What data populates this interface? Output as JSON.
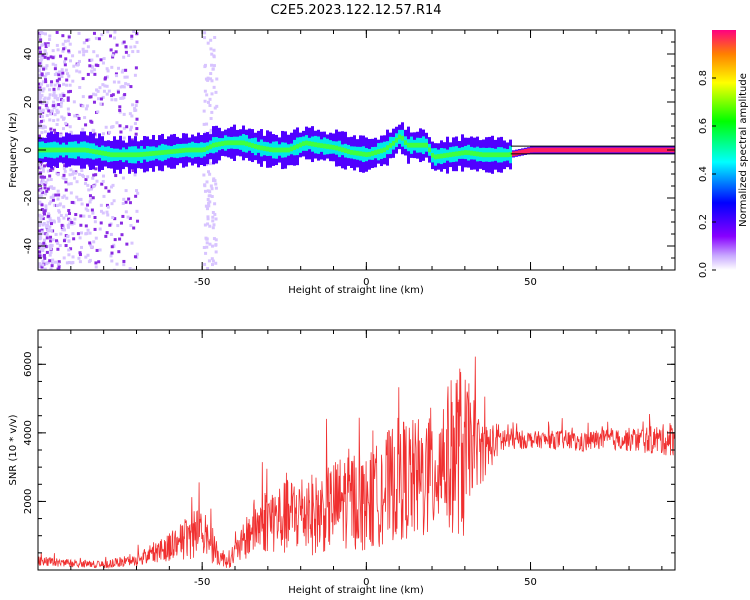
{
  "figure": {
    "title": "C2E5.2023.122.12.57.R14"
  },
  "chart_data": [
    {
      "type": "heatmap",
      "xlabel": "Height of straight line (km)",
      "ylabel": "Frequency (Hz)",
      "xlim": [
        -100,
        94
      ],
      "ylim": [
        -50,
        50
      ],
      "x_ticks": [
        "-50",
        "0",
        "50"
      ],
      "y_ticks": [
        "-40",
        "-20",
        "0",
        "20",
        "40"
      ],
      "ridge": {
        "x": [
          -98,
          -92,
          -86,
          -78,
          -70,
          -62,
          -55,
          -50,
          -47,
          -43,
          -38,
          -33,
          -29,
          -24,
          -19,
          -15,
          -10,
          -5,
          0,
          5,
          8,
          10,
          12,
          15,
          18,
          20,
          25,
          30,
          35,
          40,
          43,
          50,
          60,
          70,
          80,
          90,
          94
        ],
        "y": [
          0,
          0,
          0,
          -2,
          -2,
          -1,
          0,
          0,
          2,
          3,
          3,
          1,
          0,
          0,
          3,
          2,
          1,
          -1,
          -2,
          0,
          3,
          6,
          2,
          2,
          2,
          -3,
          -2,
          -1,
          -2,
          -2,
          -2,
          0,
          0,
          0,
          0,
          0,
          0
        ]
      },
      "colorbar": {
        "label": "Normalized spectral amplitude",
        "ticks": [
          "0.0",
          "0.2",
          "0.4",
          "0.6",
          "0.8"
        ],
        "range": [
          0,
          1
        ]
      }
    },
    {
      "type": "line",
      "xlabel": "Height of straight line (km)",
      "ylabel": "SNR (10 * v/v)",
      "xlim": [
        -100,
        94
      ],
      "ylim": [
        0,
        7000
      ],
      "x_ticks": [
        "-50",
        "0",
        "50"
      ],
      "y_ticks": [
        "2000",
        "4000",
        "6000"
      ],
      "series": [
        {
          "color": "#f03030",
          "x": [
            -100,
            -90,
            -80,
            -70,
            -65,
            -60,
            -55,
            -52,
            -50,
            -47,
            -45,
            -42,
            -38,
            -35,
            -30,
            -25,
            -20,
            -15,
            -10,
            -5,
            0,
            5,
            10,
            15,
            20,
            23,
            25,
            28,
            30,
            32,
            35,
            40,
            45,
            50,
            55,
            60,
            65,
            70,
            75,
            80,
            85,
            90,
            94
          ],
          "mean": [
            250,
            200,
            150,
            300,
            500,
            700,
            900,
            1100,
            1300,
            700,
            400,
            300,
            700,
            1200,
            1500,
            1500,
            1700,
            1600,
            1900,
            2100,
            1900,
            2300,
            2700,
            2600,
            2800,
            3400,
            3200,
            3600,
            3200,
            3800,
            3400,
            3800,
            3800,
            3800,
            3800,
            3800,
            3700,
            3800,
            3800,
            3800,
            3800,
            3800,
            3800
          ],
          "amp": [
            150,
            120,
            100,
            200,
            300,
            450,
            600,
            800,
            900,
            500,
            300,
            250,
            500,
            800,
            1000,
            1100,
            1200,
            1200,
            1300,
            1500,
            1400,
            1600,
            1800,
            1800,
            2000,
            2000,
            2200,
            2600,
            2500,
            1500,
            900,
            500,
            300,
            250,
            250,
            300,
            300,
            300,
            300,
            350,
            400,
            450,
            500
          ]
        }
      ]
    }
  ]
}
